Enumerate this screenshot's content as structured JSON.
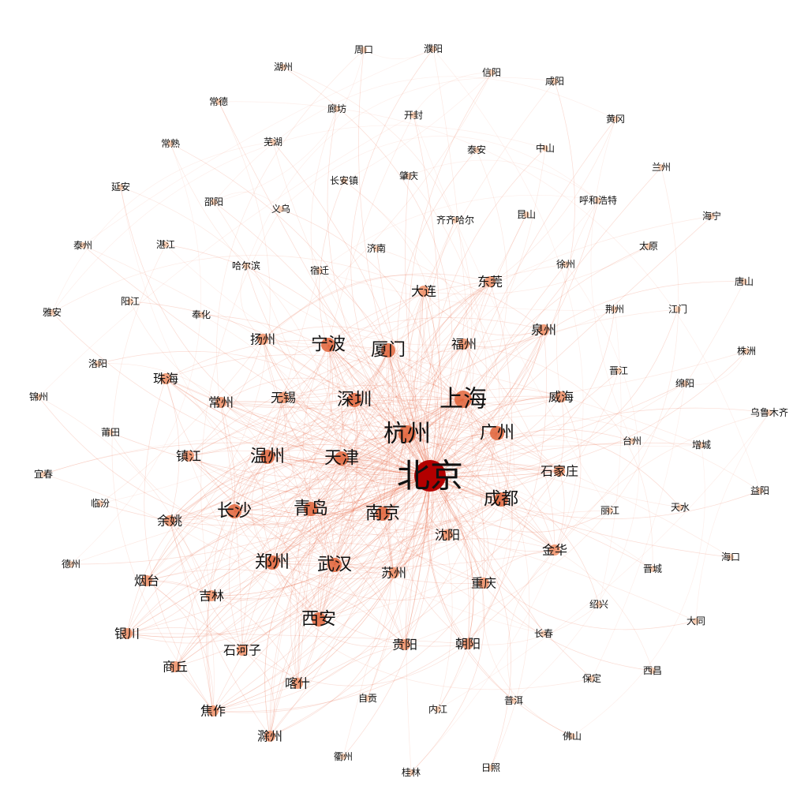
{
  "hub": "北京",
  "colors": {
    "edge": "#e8603c",
    "hub_node": "#b30000",
    "node_dark": "#e0643a",
    "node_mid": "#ef8f66",
    "node_light": "#f7c7a8",
    "label": "#111111"
  },
  "nodes": [
    {
      "label": "北京",
      "tier": 5
    },
    {
      "label": "上海",
      "tier": 4
    },
    {
      "label": "杭州",
      "tier": 4
    },
    {
      "label": "广州",
      "tier": 3
    },
    {
      "label": "深圳",
      "tier": 3
    },
    {
      "label": "厦门",
      "tier": 3
    },
    {
      "label": "宁波",
      "tier": 3
    },
    {
      "label": "天津",
      "tier": 3
    },
    {
      "label": "南京",
      "tier": 3
    },
    {
      "label": "成都",
      "tier": 3
    },
    {
      "label": "青岛",
      "tier": 3
    },
    {
      "label": "长沙",
      "tier": 3
    },
    {
      "label": "武汉",
      "tier": 3
    },
    {
      "label": "郑州",
      "tier": 3
    },
    {
      "label": "西安",
      "tier": 3
    },
    {
      "label": "温州",
      "tier": 3
    },
    {
      "label": "东莞",
      "tier": 2
    },
    {
      "label": "大连",
      "tier": 2
    },
    {
      "label": "福州",
      "tier": 2
    },
    {
      "label": "无锡",
      "tier": 2
    },
    {
      "label": "常州",
      "tier": 2
    },
    {
      "label": "扬州",
      "tier": 2
    },
    {
      "label": "镇江",
      "tier": 2
    },
    {
      "label": "余姚",
      "tier": 2
    },
    {
      "label": "沈阳",
      "tier": 2
    },
    {
      "label": "苏州",
      "tier": 2
    },
    {
      "label": "重庆",
      "tier": 2
    },
    {
      "label": "烟台",
      "tier": 2
    },
    {
      "label": "吉林",
      "tier": 2
    },
    {
      "label": "石河子",
      "tier": 2
    },
    {
      "label": "银川",
      "tier": 2
    },
    {
      "label": "商丘",
      "tier": 2
    },
    {
      "label": "喀什",
      "tier": 2
    },
    {
      "label": "焦作",
      "tier": 2
    },
    {
      "label": "滁州",
      "tier": 2
    },
    {
      "label": "贵阳",
      "tier": 2
    },
    {
      "label": "朝阳",
      "tier": 2
    },
    {
      "label": "石家庄",
      "tier": 2
    },
    {
      "label": "金华",
      "tier": 2
    },
    {
      "label": "威海",
      "tier": 2
    },
    {
      "label": "泉州",
      "tier": 2
    },
    {
      "label": "珠海",
      "tier": 2
    },
    {
      "label": "周口",
      "tier": 1
    },
    {
      "label": "濮阳",
      "tier": 1
    },
    {
      "label": "湖州",
      "tier": 1
    },
    {
      "label": "信阳",
      "tier": 1
    },
    {
      "label": "咸阳",
      "tier": 1
    },
    {
      "label": "常德",
      "tier": 1
    },
    {
      "label": "廊坊",
      "tier": 1
    },
    {
      "label": "开封",
      "tier": 1
    },
    {
      "label": "黄冈",
      "tier": 1
    },
    {
      "label": "常熟",
      "tier": 1
    },
    {
      "label": "芜湖",
      "tier": 1
    },
    {
      "label": "泰安",
      "tier": 1
    },
    {
      "label": "中山",
      "tier": 1
    },
    {
      "label": "兰州",
      "tier": 1
    },
    {
      "label": "延安",
      "tier": 1
    },
    {
      "label": "长安镇",
      "tier": 1
    },
    {
      "label": "肇庆",
      "tier": 1
    },
    {
      "label": "呼和浩特",
      "tier": 1
    },
    {
      "label": "邵阳",
      "tier": 1
    },
    {
      "label": "义乌",
      "tier": 1
    },
    {
      "label": "齐齐哈尔",
      "tier": 1
    },
    {
      "label": "昆山",
      "tier": 1
    },
    {
      "label": "海宁",
      "tier": 1
    },
    {
      "label": "泰州",
      "tier": 1
    },
    {
      "label": "湛江",
      "tier": 1
    },
    {
      "label": "济南",
      "tier": 1
    },
    {
      "label": "徐州",
      "tier": 1
    },
    {
      "label": "太原",
      "tier": 1
    },
    {
      "label": "哈尔滨",
      "tier": 1
    },
    {
      "label": "宿迁",
      "tier": 1
    },
    {
      "label": "唐山",
      "tier": 1
    },
    {
      "label": "雅安",
      "tier": 1
    },
    {
      "label": "阳江",
      "tier": 1
    },
    {
      "label": "奉化",
      "tier": 1
    },
    {
      "label": "荆州",
      "tier": 1
    },
    {
      "label": "江门",
      "tier": 1
    },
    {
      "label": "洛阳",
      "tier": 1
    },
    {
      "label": "株洲",
      "tier": 1
    },
    {
      "label": "晋江",
      "tier": 1
    },
    {
      "label": "绵阳",
      "tier": 1
    },
    {
      "label": "锦州",
      "tier": 1
    },
    {
      "label": "乌鲁木齐",
      "tier": 1
    },
    {
      "label": "莆田",
      "tier": 1
    },
    {
      "label": "台州",
      "tier": 1
    },
    {
      "label": "增城",
      "tier": 1
    },
    {
      "label": "宜春",
      "tier": 1
    },
    {
      "label": "益阳",
      "tier": 1
    },
    {
      "label": "临汾",
      "tier": 1
    },
    {
      "label": "丽江",
      "tier": 1
    },
    {
      "label": "天水",
      "tier": 1
    },
    {
      "label": "德州",
      "tier": 1
    },
    {
      "label": "海口",
      "tier": 1
    },
    {
      "label": "晋城",
      "tier": 1
    },
    {
      "label": "绍兴",
      "tier": 1
    },
    {
      "label": "大同",
      "tier": 1
    },
    {
      "label": "长春",
      "tier": 1
    },
    {
      "label": "西昌",
      "tier": 1
    },
    {
      "label": "保定",
      "tier": 1
    },
    {
      "label": "自贡",
      "tier": 1
    },
    {
      "label": "内江",
      "tier": 1
    },
    {
      "label": "普洱",
      "tier": 1
    },
    {
      "label": "佛山",
      "tier": 1
    },
    {
      "label": "衢州",
      "tier": 1
    },
    {
      "label": "桂林",
      "tier": 1
    },
    {
      "label": "日照",
      "tier": 1
    }
  ]
}
